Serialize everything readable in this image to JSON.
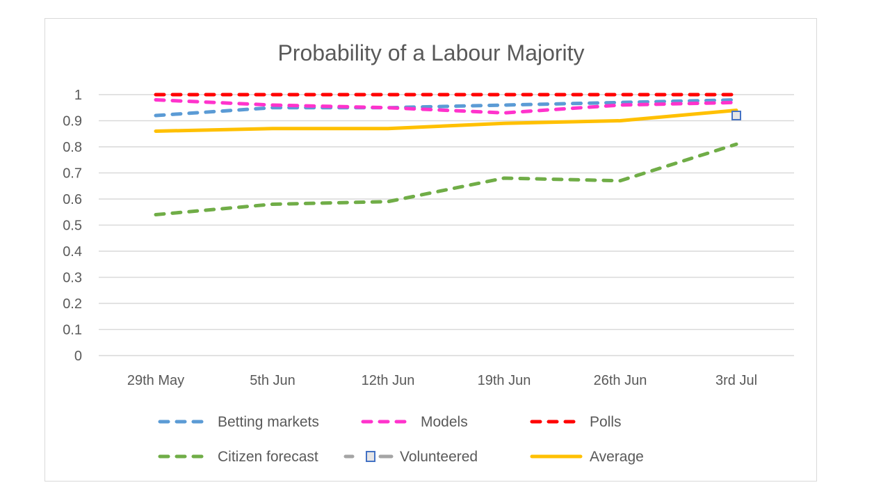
{
  "chart_data": {
    "type": "line",
    "title": "Probability of a Labour Majority",
    "xlabel": "",
    "ylabel": "",
    "ylim": [
      0,
      1
    ],
    "yticks": [
      "0",
      "0.1",
      "0.2",
      "0.3",
      "0.4",
      "0.5",
      "0.6",
      "0.7",
      "0.8",
      "0.9",
      "1"
    ],
    "ytick_values": [
      0,
      0.1,
      0.2,
      0.3,
      0.4,
      0.5,
      0.6,
      0.7,
      0.8,
      0.9,
      1.0
    ],
    "categories": [
      "29th May",
      "5th Jun",
      "12th Jun",
      "19th Jun",
      "26th Jun",
      "3rd Jul"
    ],
    "grid": true,
    "legend_position": "bottom",
    "series": [
      {
        "name": "Betting markets",
        "color": "#5b9bd5",
        "style": "dashed",
        "values": [
          0.92,
          0.95,
          0.95,
          0.96,
          0.97,
          0.98
        ]
      },
      {
        "name": "Models",
        "color": "#ff33cc",
        "style": "dashed",
        "values": [
          0.98,
          0.96,
          0.95,
          0.93,
          0.96,
          0.97
        ]
      },
      {
        "name": "Polls",
        "color": "#ff0000",
        "style": "dashed",
        "values": [
          1.0,
          1.0,
          1.0,
          1.0,
          1.0,
          1.0
        ]
      },
      {
        "name": "Citizen forecast",
        "color": "#70ad47",
        "style": "dashed",
        "values": [
          0.54,
          0.58,
          0.59,
          0.68,
          0.67,
          0.81
        ]
      },
      {
        "name": "Volunteered",
        "color": "#a5a5a5",
        "marker_color": "#4472c4",
        "style": "dashed-marker",
        "values": [
          null,
          null,
          null,
          null,
          null,
          0.92
        ]
      },
      {
        "name": "Average",
        "color": "#ffc000",
        "style": "solid",
        "values": [
          0.86,
          0.87,
          0.87,
          0.89,
          0.9,
          0.94
        ]
      }
    ]
  }
}
